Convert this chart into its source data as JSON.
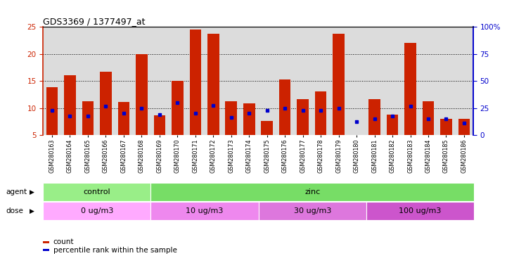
{
  "title": "GDS3369 / 1377497_at",
  "samples": [
    "GSM280163",
    "GSM280164",
    "GSM280165",
    "GSM280166",
    "GSM280167",
    "GSM280168",
    "GSM280169",
    "GSM280170",
    "GSM280171",
    "GSM280172",
    "GSM280173",
    "GSM280174",
    "GSM280175",
    "GSM280176",
    "GSM280177",
    "GSM280178",
    "GSM280179",
    "GSM280180",
    "GSM280181",
    "GSM280182",
    "GSM280183",
    "GSM280184",
    "GSM280185",
    "GSM280186"
  ],
  "count_values": [
    13.8,
    16.1,
    11.3,
    16.7,
    11.1,
    20.0,
    8.7,
    15.0,
    24.5,
    23.8,
    11.3,
    10.9,
    7.6,
    15.3,
    11.7,
    13.1,
    23.7,
    5.0,
    11.6,
    8.8,
    22.0,
    11.3,
    8.0,
    8.0
  ],
  "percentile_values": [
    9.5,
    8.5,
    8.5,
    10.4,
    9.0,
    10.0,
    8.8,
    11.0,
    9.0,
    10.5,
    8.3,
    9.0,
    9.5,
    10.0,
    9.5,
    9.5,
    10.0,
    7.5,
    8.0,
    8.5,
    10.4,
    8.0,
    8.0,
    7.2
  ],
  "bar_color": "#CC2200",
  "dot_color": "#0000CC",
  "agent_groups": [
    {
      "label": "control",
      "start": 0,
      "end": 6,
      "color": "#99EE88"
    },
    {
      "label": "zinc",
      "start": 6,
      "end": 24,
      "color": "#77DD66"
    }
  ],
  "dose_groups": [
    {
      "label": "0 ug/m3",
      "start": 0,
      "end": 6,
      "color": "#FFAAFF"
    },
    {
      "label": "10 ug/m3",
      "start": 6,
      "end": 12,
      "color": "#EE88EE"
    },
    {
      "label": "30 ug/m3",
      "start": 12,
      "end": 18,
      "color": "#DD77DD"
    },
    {
      "label": "100 ug/m3",
      "start": 18,
      "end": 24,
      "color": "#CC55CC"
    }
  ],
  "ylim_left": [
    5,
    25
  ],
  "ylim_right": [
    0,
    100
  ],
  "yticks_left": [
    5,
    10,
    15,
    20,
    25
  ],
  "yticks_right": [
    0,
    25,
    50,
    75,
    100
  ],
  "left_axis_color": "#CC2200",
  "right_axis_color": "#0000CC",
  "bg_color": "#DCDCDC"
}
